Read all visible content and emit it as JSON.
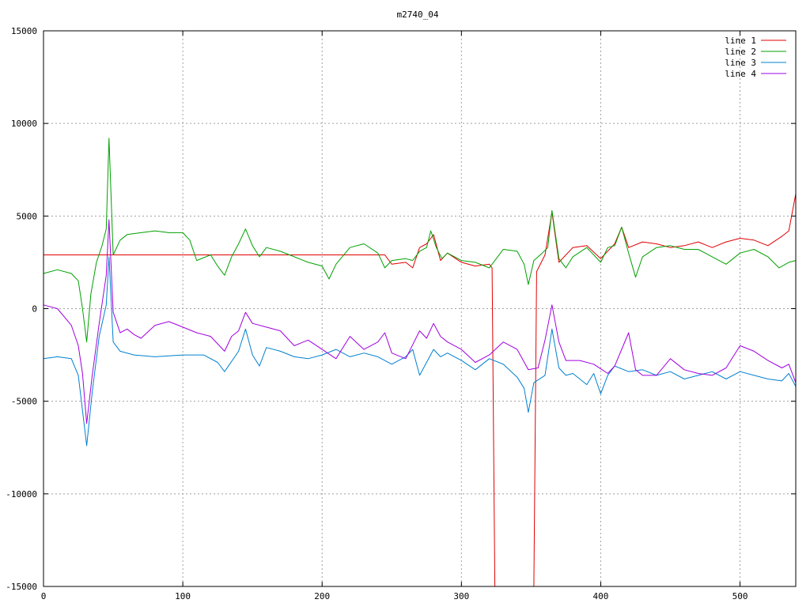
{
  "chart_data": {
    "type": "line",
    "title": "m2740_04",
    "xlabel": "",
    "ylabel": "",
    "xlim": [
      0,
      540
    ],
    "ylim": [
      -15000,
      15000
    ],
    "xticks": [
      0,
      100,
      200,
      300,
      400,
      500
    ],
    "yticks": [
      -15000,
      -10000,
      -5000,
      0,
      5000,
      10000,
      15000
    ],
    "grid": true,
    "legend_position": "top-right",
    "series": [
      {
        "name": "line 1",
        "color": "#e00000",
        "points": [
          [
            0,
            2900
          ],
          [
            50,
            2900
          ],
          [
            100,
            2900
          ],
          [
            150,
            2900
          ],
          [
            200,
            2900
          ],
          [
            245,
            2900
          ],
          [
            250,
            2400
          ],
          [
            260,
            2500
          ],
          [
            265,
            2200
          ],
          [
            270,
            3300
          ],
          [
            275,
            3500
          ],
          [
            280,
            4000
          ],
          [
            285,
            2600
          ],
          [
            290,
            3000
          ],
          [
            300,
            2500
          ],
          [
            310,
            2300
          ],
          [
            320,
            2400
          ],
          [
            322,
            2200
          ],
          [
            324,
            -15000
          ],
          [
            352,
            -15000
          ],
          [
            354,
            2000
          ],
          [
            360,
            2900
          ],
          [
            365,
            5200
          ],
          [
            370,
            2500
          ],
          [
            380,
            3300
          ],
          [
            390,
            3400
          ],
          [
            400,
            2700
          ],
          [
            410,
            3500
          ],
          [
            415,
            4400
          ],
          [
            420,
            3300
          ],
          [
            430,
            3600
          ],
          [
            440,
            3500
          ],
          [
            450,
            3300
          ],
          [
            460,
            3400
          ],
          [
            470,
            3600
          ],
          [
            480,
            3300
          ],
          [
            490,
            3600
          ],
          [
            500,
            3800
          ],
          [
            510,
            3700
          ],
          [
            520,
            3400
          ],
          [
            530,
            3900
          ],
          [
            535,
            4200
          ],
          [
            540,
            6200
          ]
        ]
      },
      {
        "name": "line 2",
        "color": "#00a000",
        "points": [
          [
            0,
            1900
          ],
          [
            10,
            2100
          ],
          [
            20,
            1900
          ],
          [
            25,
            1500
          ],
          [
            28,
            0
          ],
          [
            31,
            -1800
          ],
          [
            34,
            800
          ],
          [
            38,
            2500
          ],
          [
            42,
            3400
          ],
          [
            45,
            4300
          ],
          [
            47,
            9200
          ],
          [
            50,
            2900
          ],
          [
            55,
            3700
          ],
          [
            60,
            4000
          ],
          [
            70,
            4100
          ],
          [
            80,
            4200
          ],
          [
            90,
            4100
          ],
          [
            100,
            4100
          ],
          [
            105,
            3700
          ],
          [
            110,
            2600
          ],
          [
            120,
            2900
          ],
          [
            125,
            2300
          ],
          [
            130,
            1800
          ],
          [
            135,
            2800
          ],
          [
            140,
            3500
          ],
          [
            145,
            4300
          ],
          [
            150,
            3400
          ],
          [
            155,
            2800
          ],
          [
            160,
            3300
          ],
          [
            170,
            3100
          ],
          [
            180,
            2800
          ],
          [
            190,
            2500
          ],
          [
            200,
            2300
          ],
          [
            205,
            1600
          ],
          [
            210,
            2400
          ],
          [
            220,
            3300
          ],
          [
            230,
            3500
          ],
          [
            240,
            3000
          ],
          [
            245,
            2200
          ],
          [
            250,
            2600
          ],
          [
            260,
            2700
          ],
          [
            265,
            2600
          ],
          [
            270,
            3100
          ],
          [
            275,
            3300
          ],
          [
            278,
            4200
          ],
          [
            282,
            3300
          ],
          [
            286,
            2700
          ],
          [
            290,
            3000
          ],
          [
            300,
            2600
          ],
          [
            310,
            2500
          ],
          [
            320,
            2200
          ],
          [
            330,
            3200
          ],
          [
            340,
            3100
          ],
          [
            345,
            2400
          ],
          [
            348,
            1300
          ],
          [
            352,
            2600
          ],
          [
            358,
            3000
          ],
          [
            362,
            3300
          ],
          [
            365,
            5300
          ],
          [
            370,
            2700
          ],
          [
            375,
            2200
          ],
          [
            380,
            2800
          ],
          [
            390,
            3300
          ],
          [
            400,
            2500
          ],
          [
            405,
            3300
          ],
          [
            410,
            3400
          ],
          [
            415,
            4400
          ],
          [
            420,
            3000
          ],
          [
            425,
            1700
          ],
          [
            430,
            2800
          ],
          [
            440,
            3300
          ],
          [
            450,
            3400
          ],
          [
            460,
            3200
          ],
          [
            470,
            3200
          ],
          [
            480,
            2800
          ],
          [
            490,
            2400
          ],
          [
            500,
            3000
          ],
          [
            510,
            3200
          ],
          [
            520,
            2800
          ],
          [
            528,
            2200
          ],
          [
            535,
            2500
          ],
          [
            540,
            2600
          ]
        ]
      },
      {
        "name": "line 3",
        "color": "#0080d0",
        "points": [
          [
            0,
            -2700
          ],
          [
            10,
            -2600
          ],
          [
            20,
            -2700
          ],
          [
            25,
            -3600
          ],
          [
            28,
            -5500
          ],
          [
            31,
            -7400
          ],
          [
            35,
            -4500
          ],
          [
            40,
            -1500
          ],
          [
            45,
            200
          ],
          [
            47,
            2800
          ],
          [
            50,
            -1800
          ],
          [
            55,
            -2300
          ],
          [
            65,
            -2500
          ],
          [
            80,
            -2600
          ],
          [
            100,
            -2500
          ],
          [
            115,
            -2500
          ],
          [
            125,
            -2900
          ],
          [
            130,
            -3400
          ],
          [
            140,
            -2300
          ],
          [
            145,
            -1100
          ],
          [
            150,
            -2500
          ],
          [
            155,
            -3100
          ],
          [
            160,
            -2100
          ],
          [
            170,
            -2300
          ],
          [
            180,
            -2600
          ],
          [
            190,
            -2700
          ],
          [
            200,
            -2500
          ],
          [
            210,
            -2200
          ],
          [
            220,
            -2600
          ],
          [
            230,
            -2400
          ],
          [
            240,
            -2600
          ],
          [
            250,
            -3000
          ],
          [
            260,
            -2600
          ],
          [
            265,
            -2200
          ],
          [
            270,
            -3600
          ],
          [
            280,
            -2200
          ],
          [
            285,
            -2600
          ],
          [
            290,
            -2400
          ],
          [
            300,
            -2800
          ],
          [
            310,
            -3300
          ],
          [
            320,
            -2700
          ],
          [
            330,
            -3000
          ],
          [
            340,
            -3700
          ],
          [
            345,
            -4300
          ],
          [
            348,
            -5600
          ],
          [
            352,
            -4000
          ],
          [
            360,
            -3600
          ],
          [
            365,
            -1100
          ],
          [
            370,
            -3200
          ],
          [
            375,
            -3600
          ],
          [
            380,
            -3500
          ],
          [
            390,
            -4100
          ],
          [
            395,
            -3500
          ],
          [
            400,
            -4600
          ],
          [
            405,
            -3600
          ],
          [
            410,
            -3100
          ],
          [
            420,
            -3400
          ],
          [
            430,
            -3300
          ],
          [
            440,
            -3600
          ],
          [
            450,
            -3400
          ],
          [
            460,
            -3800
          ],
          [
            470,
            -3600
          ],
          [
            480,
            -3400
          ],
          [
            490,
            -3800
          ],
          [
            500,
            -3400
          ],
          [
            510,
            -3600
          ],
          [
            520,
            -3800
          ],
          [
            530,
            -3900
          ],
          [
            535,
            -3500
          ],
          [
            540,
            -4200
          ]
        ]
      },
      {
        "name": "line 4",
        "color": "#a000e0",
        "points": [
          [
            0,
            200
          ],
          [
            10,
            0
          ],
          [
            20,
            -900
          ],
          [
            25,
            -2000
          ],
          [
            28,
            -3500
          ],
          [
            31,
            -6200
          ],
          [
            35,
            -3600
          ],
          [
            40,
            -800
          ],
          [
            45,
            1800
          ],
          [
            47,
            4800
          ],
          [
            50,
            -200
          ],
          [
            55,
            -1300
          ],
          [
            60,
            -1100
          ],
          [
            65,
            -1400
          ],
          [
            70,
            -1600
          ],
          [
            80,
            -900
          ],
          [
            90,
            -700
          ],
          [
            100,
            -1000
          ],
          [
            110,
            -1300
          ],
          [
            120,
            -1500
          ],
          [
            130,
            -2300
          ],
          [
            135,
            -1500
          ],
          [
            140,
            -1200
          ],
          [
            145,
            -200
          ],
          [
            150,
            -800
          ],
          [
            160,
            -1000
          ],
          [
            170,
            -1200
          ],
          [
            180,
            -2000
          ],
          [
            190,
            -1700
          ],
          [
            200,
            -2200
          ],
          [
            210,
            -2700
          ],
          [
            220,
            -1500
          ],
          [
            230,
            -2200
          ],
          [
            240,
            -1800
          ],
          [
            245,
            -1300
          ],
          [
            250,
            -2400
          ],
          [
            260,
            -2700
          ],
          [
            270,
            -1200
          ],
          [
            275,
            -1600
          ],
          [
            280,
            -800
          ],
          [
            285,
            -1500
          ],
          [
            290,
            -1800
          ],
          [
            300,
            -2200
          ],
          [
            310,
            -2900
          ],
          [
            320,
            -2500
          ],
          [
            330,
            -1800
          ],
          [
            340,
            -2200
          ],
          [
            348,
            -3300
          ],
          [
            355,
            -3200
          ],
          [
            360,
            -1700
          ],
          [
            365,
            200
          ],
          [
            370,
            -1800
          ],
          [
            375,
            -2800
          ],
          [
            385,
            -2800
          ],
          [
            395,
            -3000
          ],
          [
            405,
            -3500
          ],
          [
            410,
            -3100
          ],
          [
            420,
            -1300
          ],
          [
            425,
            -3300
          ],
          [
            430,
            -3600
          ],
          [
            440,
            -3600
          ],
          [
            450,
            -2700
          ],
          [
            460,
            -3300
          ],
          [
            470,
            -3500
          ],
          [
            480,
            -3600
          ],
          [
            490,
            -3200
          ],
          [
            500,
            -2000
          ],
          [
            510,
            -2300
          ],
          [
            520,
            -2800
          ],
          [
            530,
            -3200
          ],
          [
            535,
            -3000
          ],
          [
            540,
            -4000
          ]
        ]
      }
    ]
  }
}
